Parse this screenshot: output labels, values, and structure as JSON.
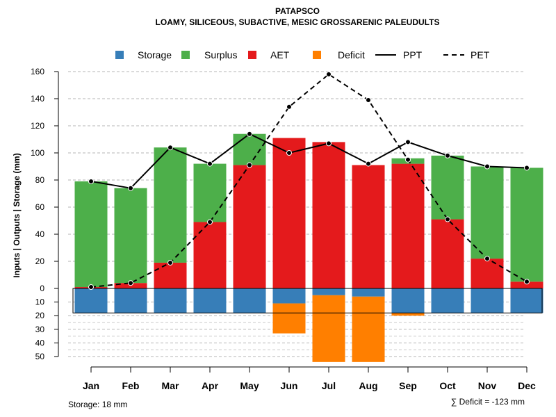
{
  "chart_data": {
    "type": "bar",
    "title": "PATAPSCO",
    "subtitle": "LOAMY, SILICEOUS, SUBACTIVE, MESIC GROSSARENIC PALEUDULTS",
    "ylabel": "Inputs | Outputs | Storage    (mm)",
    "categories": [
      "Jan",
      "Feb",
      "Mar",
      "Apr",
      "May",
      "Jun",
      "Jul",
      "Aug",
      "Sep",
      "Oct",
      "Nov",
      "Dec"
    ],
    "ylim_upper": [
      0,
      160
    ],
    "yticks_upper": [
      "0",
      "20",
      "40",
      "60",
      "80",
      "100",
      "120",
      "140",
      "160"
    ],
    "yticks_lower": [
      "10",
      "20",
      "30",
      "40",
      "50"
    ],
    "legend": [
      {
        "label": "Storage",
        "kind": "box",
        "color": "#377EB8"
      },
      {
        "label": "Surplus",
        "kind": "box",
        "color": "#4DAF4A"
      },
      {
        "label": "AET",
        "kind": "box",
        "color": "#E41A1C"
      },
      {
        "label": "Deficit",
        "kind": "box",
        "color": "#FF7F00"
      },
      {
        "label": "PPT",
        "kind": "solid"
      },
      {
        "label": "PET",
        "kind": "dashed"
      }
    ],
    "series": [
      {
        "name": "AET",
        "color": "#E41A1C",
        "values": [
          1,
          4,
          19,
          49,
          91,
          111,
          108,
          91,
          92,
          51,
          22,
          5
        ]
      },
      {
        "name": "Surplus",
        "color": "#4DAF4A",
        "values": [
          78,
          70,
          85,
          43,
          23,
          0,
          0,
          0,
          4,
          47,
          68,
          84
        ]
      },
      {
        "name": "Storage",
        "color": "#377EB8",
        "values": [
          18,
          18,
          18,
          18,
          18,
          11,
          5,
          6,
          18,
          18,
          18,
          18
        ]
      },
      {
        "name": "Deficit",
        "color": "#FF7F00",
        "values": [
          0,
          0,
          0,
          0,
          0,
          22,
          49,
          48,
          2,
          0,
          0,
          0
        ]
      },
      {
        "name": "PPT",
        "style": "solid",
        "values": [
          79,
          74,
          104,
          92,
          114,
          100,
          107,
          92,
          108,
          98,
          90,
          89
        ]
      },
      {
        "name": "PET",
        "style": "dashed",
        "values": [
          1,
          4,
          19,
          49,
          91,
          134,
          158,
          139,
          95,
          51,
          22,
          5
        ]
      }
    ],
    "storage_capacity": 18,
    "storage_note": "Storage: 18 mm",
    "deficit_note": "∑ Deficit = -123 mm"
  }
}
